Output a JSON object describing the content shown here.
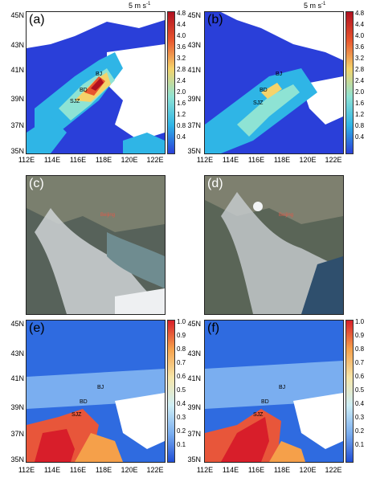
{
  "panels": [
    {
      "id": "a",
      "letter": "(a)",
      "type": "field",
      "cities": [
        "BJ",
        "BD",
        "SJZ"
      ],
      "scale_text": "5 m s",
      "scale_sup": "-1",
      "cbar_ticks": [
        "4.8",
        "4.4",
        "4.0",
        "3.6",
        "3.2",
        "2.8",
        "2.4",
        "2.0",
        "1.6",
        "1.2",
        "0.8",
        "0.4"
      ],
      "yticks": [
        "45N",
        "43N",
        "41N",
        "39N",
        "37N",
        "35N"
      ],
      "xticks": [
        "112E",
        "114E",
        "116E",
        "118E",
        "120E",
        "122E"
      ]
    },
    {
      "id": "b",
      "letter": "(b)",
      "type": "field",
      "cities": [
        "BJ",
        "BD",
        "SJZ"
      ],
      "scale_text": "5 m s",
      "scale_sup": "-1",
      "cbar_ticks": [
        "4.8",
        "4.4",
        "4.0",
        "3.6",
        "3.2",
        "2.8",
        "2.4",
        "2.0",
        "1.6",
        "1.2",
        "0.8",
        "0.4"
      ],
      "yticks": [
        "45N",
        "43N",
        "41N",
        "39N",
        "37N",
        "35N"
      ],
      "xticks": [
        "112E",
        "114E",
        "116E",
        "118E",
        "120E",
        "122E"
      ]
    },
    {
      "id": "c",
      "letter": "(c)",
      "type": "satellite",
      "label": "Beijing"
    },
    {
      "id": "d",
      "letter": "(d)",
      "type": "satellite",
      "label": "Beijing"
    },
    {
      "id": "e",
      "letter": "(e)",
      "type": "aod",
      "cities": [
        "BJ",
        "BD",
        "SJZ"
      ],
      "cbar_ticks": [
        "1.0",
        "0.9",
        "0.8",
        "0.7",
        "0.6",
        "0.5",
        "0.4",
        "0.3",
        "0.2",
        "0.1"
      ],
      "yticks": [
        "45N",
        "43N",
        "41N",
        "39N",
        "37N",
        "35N"
      ],
      "xticks": [
        "112E",
        "114E",
        "116E",
        "118E",
        "120E",
        "122E"
      ]
    },
    {
      "id": "f",
      "letter": "(f)",
      "type": "aod",
      "cities": [
        "BJ",
        "BD",
        "SJZ"
      ],
      "cbar_ticks": [
        "1.0",
        "0.9",
        "0.8",
        "0.7",
        "0.6",
        "0.5",
        "0.4",
        "0.3",
        "0.2",
        "0.1"
      ],
      "yticks": [
        "45N",
        "43N",
        "41N",
        "39N",
        "37N",
        "35N"
      ],
      "xticks": [
        "112E",
        "114E",
        "116E",
        "118E",
        "120E",
        "122E"
      ]
    }
  ],
  "colors": {
    "field_low": "#2a3fd9",
    "field_high": "#b01020",
    "aod_low": "#1f4ed6",
    "aod_high": "#d81e2a"
  }
}
